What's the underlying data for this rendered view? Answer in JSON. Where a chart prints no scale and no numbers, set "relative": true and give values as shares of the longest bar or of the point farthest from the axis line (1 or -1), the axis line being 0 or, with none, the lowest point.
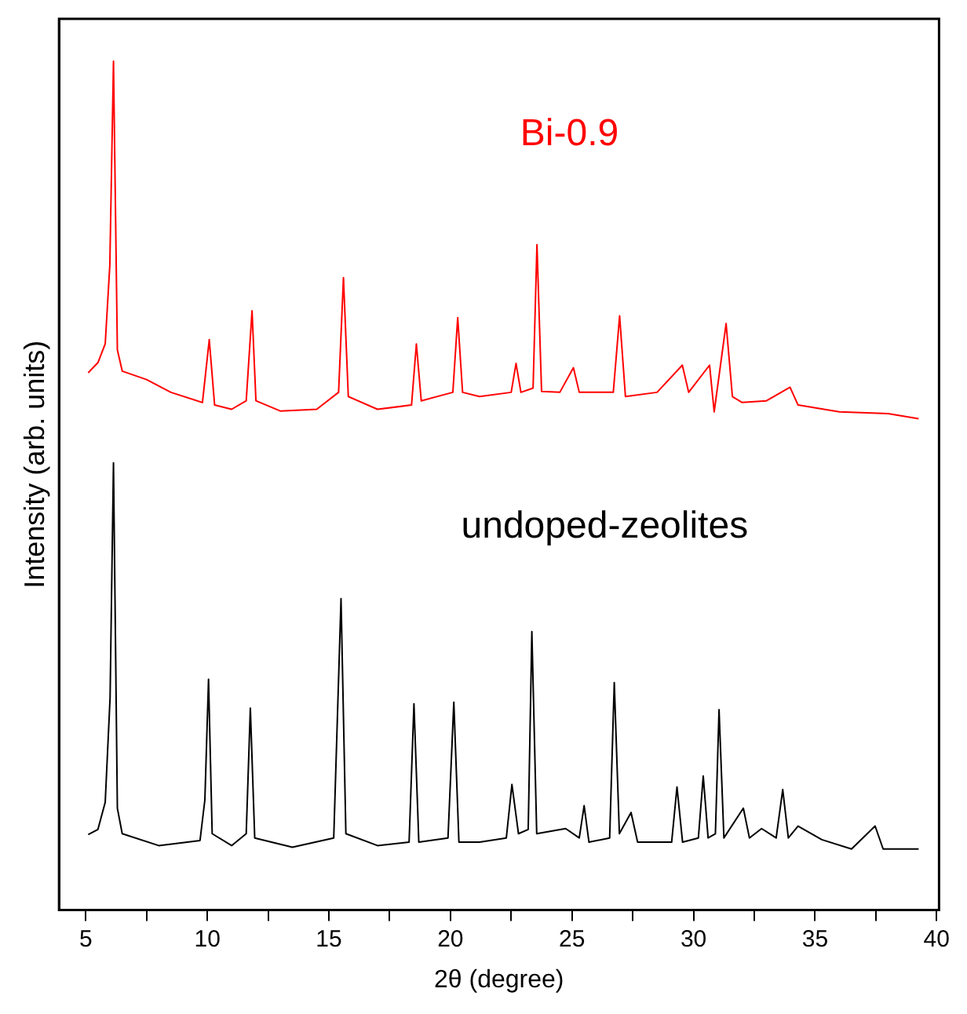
{
  "chart_data": {
    "type": "line",
    "relative": true,
    "xlabel": "2θ (degree)",
    "ylabel": "Intensity (arb. units)",
    "xlim": [
      3.9,
      40.1
    ],
    "xticks": [
      5,
      {
        "value": 7.5,
        "label": null
      },
      10,
      {
        "value": 12.5,
        "label": null
      },
      15,
      {
        "value": 17.5,
        "label": null
      },
      20,
      {
        "value": 22.5,
        "label": null
      },
      25,
      {
        "value": 27.5,
        "label": null
      },
      30,
      {
        "value": 32.5,
        "label": null
      },
      35,
      {
        "value": 37.5,
        "label": null
      },
      40
    ],
    "grid": false,
    "legend": false,
    "marker": "none",
    "line_style": "solid",
    "series": [
      {
        "name": "Bi-0.9",
        "color": "#ff0000",
        "x": [
          5.1,
          5.5,
          5.8,
          5.99,
          6.14,
          6.3,
          6.5,
          7.5,
          8.5,
          9.8,
          10.08,
          10.3,
          11.0,
          11.6,
          11.84,
          12.0,
          13,
          14.5,
          15.4,
          15.6,
          15.8,
          17,
          18.4,
          18.6,
          18.8,
          20.1,
          20.3,
          20.5,
          21.2,
          22.5,
          22.7,
          22.9,
          23.4,
          23.56,
          23.75,
          24.5,
          25.06,
          25.3,
          26.7,
          26.96,
          27.2,
          28.5,
          29.54,
          29.8,
          30.66,
          30.85,
          31.34,
          31.6,
          32.0,
          33.0,
          33.97,
          34.3,
          36,
          38,
          39.26
        ],
        "values": [
          0.633,
          0.645,
          0.667,
          0.76,
          1.0,
          0.66,
          0.635,
          0.625,
          0.61,
          0.598,
          0.672,
          0.595,
          0.59,
          0.6,
          0.706,
          0.6,
          0.588,
          0.59,
          0.61,
          0.745,
          0.605,
          0.59,
          0.595,
          0.667,
          0.6,
          0.61,
          0.698,
          0.61,
          0.605,
          0.61,
          0.644,
          0.61,
          0.615,
          0.784,
          0.611,
          0.61,
          0.639,
          0.61,
          0.61,
          0.7,
          0.605,
          0.61,
          0.642,
          0.61,
          0.642,
          0.587,
          0.691,
          0.605,
          0.598,
          0.6,
          0.616,
          0.595,
          0.587,
          0.585,
          0.579
        ]
      },
      {
        "name": "undoped-zeolites",
        "color": "#000000",
        "x": [
          5.1,
          5.5,
          5.8,
          6.0,
          6.14,
          6.3,
          6.5,
          8,
          9.7,
          9.9,
          10.05,
          10.2,
          11,
          11.6,
          11.77,
          11.95,
          13.5,
          15.2,
          15.5,
          15.7,
          17,
          18.3,
          18.5,
          18.7,
          19.9,
          20.14,
          20.35,
          21.2,
          22.3,
          22.53,
          22.8,
          23.2,
          23.35,
          23.55,
          24.74,
          25.3,
          25.5,
          25.7,
          26.55,
          26.74,
          26.95,
          27.43,
          27.7,
          29.1,
          29.32,
          29.55,
          30.2,
          30.4,
          30.6,
          30.9,
          31.05,
          31.25,
          32.05,
          32.3,
          32.8,
          33.4,
          33.67,
          33.9,
          34.3,
          35.28,
          36.5,
          37.47,
          37.8,
          39.26
        ],
        "values": [
          0.089,
          0.095,
          0.127,
          0.25,
          0.527,
          0.12,
          0.09,
          0.076,
          0.082,
          0.13,
          0.272,
          0.09,
          0.076,
          0.09,
          0.238,
          0.085,
          0.074,
          0.085,
          0.367,
          0.09,
          0.076,
          0.08,
          0.243,
          0.08,
          0.085,
          0.245,
          0.08,
          0.08,
          0.085,
          0.148,
          0.09,
          0.095,
          0.328,
          0.09,
          0.096,
          0.085,
          0.123,
          0.08,
          0.085,
          0.268,
          0.09,
          0.115,
          0.08,
          0.08,
          0.145,
          0.08,
          0.085,
          0.158,
          0.085,
          0.09,
          0.236,
          0.085,
          0.12,
          0.085,
          0.096,
          0.085,
          0.142,
          0.085,
          0.099,
          0.083,
          0.072,
          0.099,
          0.072,
          0.072
        ]
      }
    ]
  }
}
